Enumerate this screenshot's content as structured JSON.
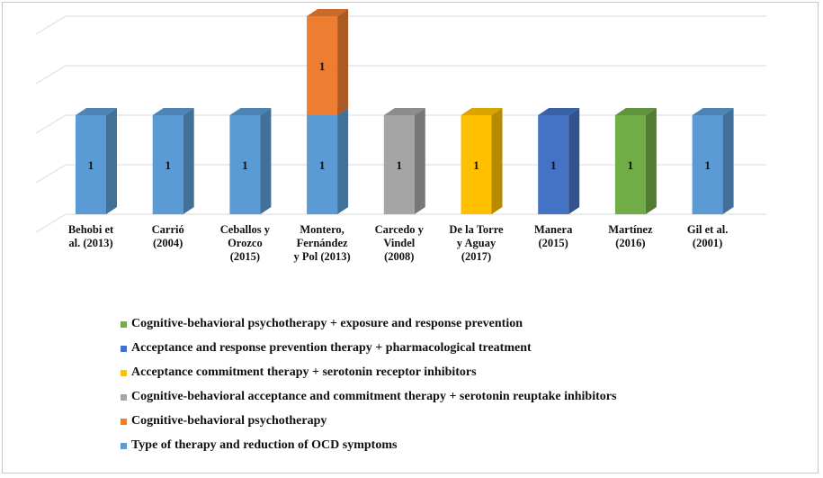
{
  "chart_data": {
    "type": "bar",
    "stacked": true,
    "three_d": true,
    "grid": true,
    "legend_position": "bottom",
    "ylim": [
      0,
      3.5
    ],
    "categories": [
      "Behobi et\nal. (2013)",
      "Carrió\n(2004)",
      "Ceballos y\nOrozco\n(2015)",
      "Montero,\nFernández\ny Pol (2013)",
      "Carcedo y\nVindel\n(2008)",
      "De la Torre\ny Aguay\n(2017)",
      "Manera\n(2015)",
      "Martínez\n(2016)",
      "Gil et al.\n(2001)"
    ],
    "series": [
      {
        "name": "Type of therapy and reduction of OCD symptoms",
        "color": "#5b9bd5",
        "values": [
          1,
          1,
          1,
          1,
          0,
          0,
          0,
          0,
          1
        ]
      },
      {
        "name": "Cognitive-behavioral psychotherapy",
        "color": "#ed7d31",
        "values": [
          0,
          0,
          0,
          1,
          0,
          0,
          0,
          0,
          0
        ]
      },
      {
        "name": "Cognitive-behavioral acceptance and commitment therapy + serotonin reuptake inhibitors",
        "color": "#a5a5a5",
        "values": [
          0,
          0,
          0,
          0,
          1,
          0,
          0,
          0,
          0
        ]
      },
      {
        "name": "Acceptance commitment therapy + serotonin receptor inhibitors",
        "color": "#ffc000",
        "values": [
          0,
          0,
          0,
          0,
          0,
          1,
          0,
          0,
          0
        ]
      },
      {
        "name": "Acceptance and response prevention therapy + pharmacological treatment",
        "color": "#4472c4",
        "values": [
          0,
          0,
          0,
          0,
          0,
          0,
          1,
          0,
          0
        ]
      },
      {
        "name": "Cognitive-behavioral psychotherapy + exposure and response prevention",
        "color": "#70ad47",
        "values": [
          0,
          0,
          0,
          0,
          0,
          0,
          0,
          1,
          0
        ]
      }
    ],
    "legend_order": [
      5,
      4,
      3,
      2,
      1,
      0
    ]
  }
}
